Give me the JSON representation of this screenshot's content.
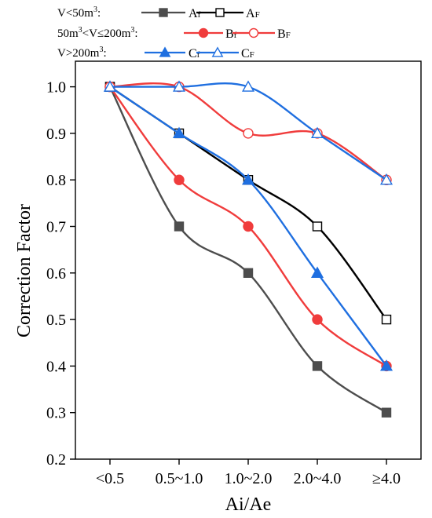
{
  "chart_data": {
    "type": "line",
    "title": "",
    "xlabel": "Ai/Ae",
    "ylabel": "Correction Factor",
    "categories": [
      "<0.5",
      "0.5~1.0",
      "1.0~2.0",
      "2.0~4.0",
      "≥4.0"
    ],
    "ylim": [
      0.2,
      1.05
    ],
    "yticks": [
      0.2,
      0.3,
      0.4,
      0.5,
      0.6,
      0.7,
      0.8,
      0.9,
      1.0
    ],
    "ytick_labels": [
      "0.2",
      "0.3",
      "0.4",
      "0.5",
      "0.6",
      "0.7",
      "0.8",
      "0.9",
      "1.0"
    ],
    "grid": false,
    "legend_position": "top-left",
    "legend_groups": [
      {
        "label_html": "V&lt;50m<tspan dy='-6' font-size='10'>3</tspan><tspan dy='6'>:</tspan>",
        "label_text": "V<50m3:",
        "series": [
          0,
          1
        ]
      },
      {
        "label_html": "50m<tspan dy='-6' font-size='10'>3</tspan><tspan dy='6'>&lt;V≤200m</tspan><tspan dy='-6' font-size='10'>3</tspan><tspan dy='6'>:</tspan>",
        "label_text": "50m3<V≤200m3:",
        "series": [
          2,
          3
        ]
      },
      {
        "label_html": "V&gt;200m<tspan dy='-6' font-size='10'>3</tspan><tspan dy='6'>:</tspan>",
        "label_text": "V>200m3:",
        "series": [
          4,
          5
        ]
      }
    ],
    "series": [
      {
        "name": "Af",
        "base": "A",
        "sub": "f",
        "color": "#4d4d4d",
        "marker": "square",
        "filled": true,
        "values": [
          1.0,
          0.7,
          0.6,
          0.4,
          0.3
        ]
      },
      {
        "name": "AF",
        "base": "A",
        "sub": "F",
        "color": "#000000",
        "marker": "square",
        "filled": false,
        "values": [
          1.0,
          0.9,
          0.8,
          0.7,
          0.5
        ]
      },
      {
        "name": "Bf",
        "base": "B",
        "sub": "f",
        "color": "#f03c3c",
        "marker": "circle",
        "filled": true,
        "values": [
          1.0,
          0.8,
          0.7,
          0.5,
          0.4
        ]
      },
      {
        "name": "BF",
        "base": "B",
        "sub": "F",
        "color": "#f03c3c",
        "marker": "circle",
        "filled": false,
        "values": [
          1.0,
          1.0,
          0.9,
          0.9,
          0.8
        ]
      },
      {
        "name": "Cf",
        "base": "C",
        "sub": "f",
        "color": "#1f6fe0",
        "marker": "triangle",
        "filled": true,
        "values": [
          1.0,
          0.9,
          0.8,
          0.6,
          0.4
        ]
      },
      {
        "name": "CF",
        "base": "C",
        "sub": "F",
        "color": "#1f6fe0",
        "marker": "triangle",
        "filled": false,
        "values": [
          1.0,
          1.0,
          1.0,
          0.9,
          0.8
        ]
      }
    ]
  }
}
